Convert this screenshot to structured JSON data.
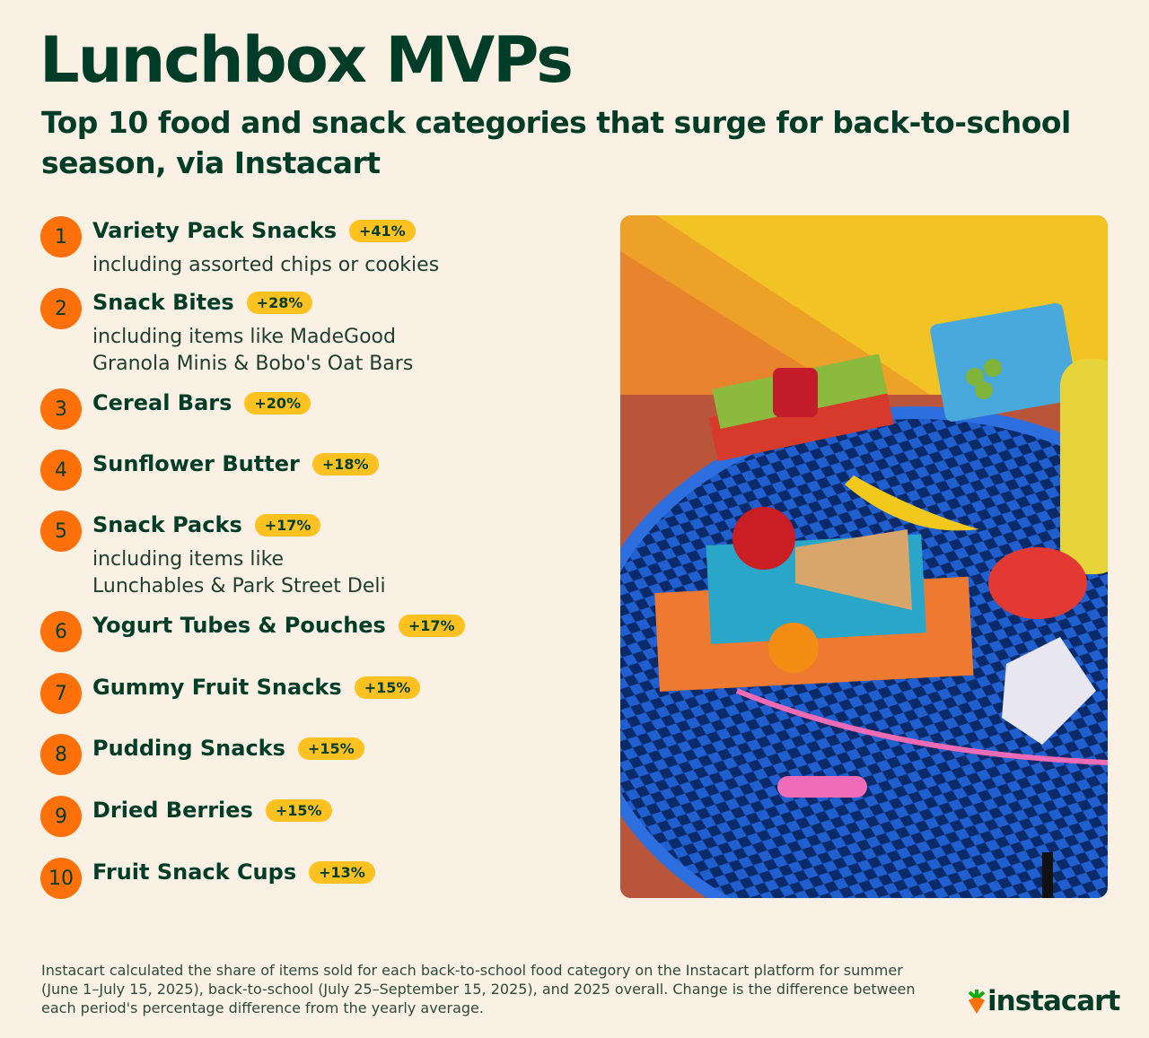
{
  "header": {
    "title": "Lunchbox MVPs",
    "subtitle": "Top 10 food and snack categories that surge for back-to-school season, via Instacart"
  },
  "items": [
    {
      "rank": "1",
      "name": "Variety Pack Snacks",
      "change": "+41%",
      "description": [
        "including assorted chips or cookies"
      ]
    },
    {
      "rank": "2",
      "name": "Snack Bites",
      "change": "+28%",
      "description": [
        "including items like MadeGood",
        "Granola Minis & Bobo's Oat Bars"
      ]
    },
    {
      "rank": "3",
      "name": "Cereal Bars",
      "change": "+20%"
    },
    {
      "rank": "4",
      "name": "Sunflower Butter",
      "change": "+18%"
    },
    {
      "rank": "5",
      "name": "Snack Packs",
      "change": "+17%",
      "description": [
        "including items like",
        "Lunchables & Park Street Deli"
      ]
    },
    {
      "rank": "6",
      "name": "Yogurt Tubes & Pouches",
      "change": "+17%"
    },
    {
      "rank": "7",
      "name": "Gummy Fruit Snacks",
      "change": "+15%"
    },
    {
      "rank": "8",
      "name": "Pudding Snacks",
      "change": "+15%"
    },
    {
      "rank": "9",
      "name": "Dried Berries",
      "change": "+15%"
    },
    {
      "rank": "10",
      "name": "Fruit Snack Cups",
      "change": "+13%"
    }
  ],
  "footer": {
    "note": "Instacart calculated the share of items sold for each back-to-school food category on the Instacart platform for summer (June 1–July 15, 2025), back-to-school (July 25–September 15, 2025), and 2025 overall. Change is the difference between each period's percentage difference from the yearly average.",
    "brand": "instacart"
  }
}
